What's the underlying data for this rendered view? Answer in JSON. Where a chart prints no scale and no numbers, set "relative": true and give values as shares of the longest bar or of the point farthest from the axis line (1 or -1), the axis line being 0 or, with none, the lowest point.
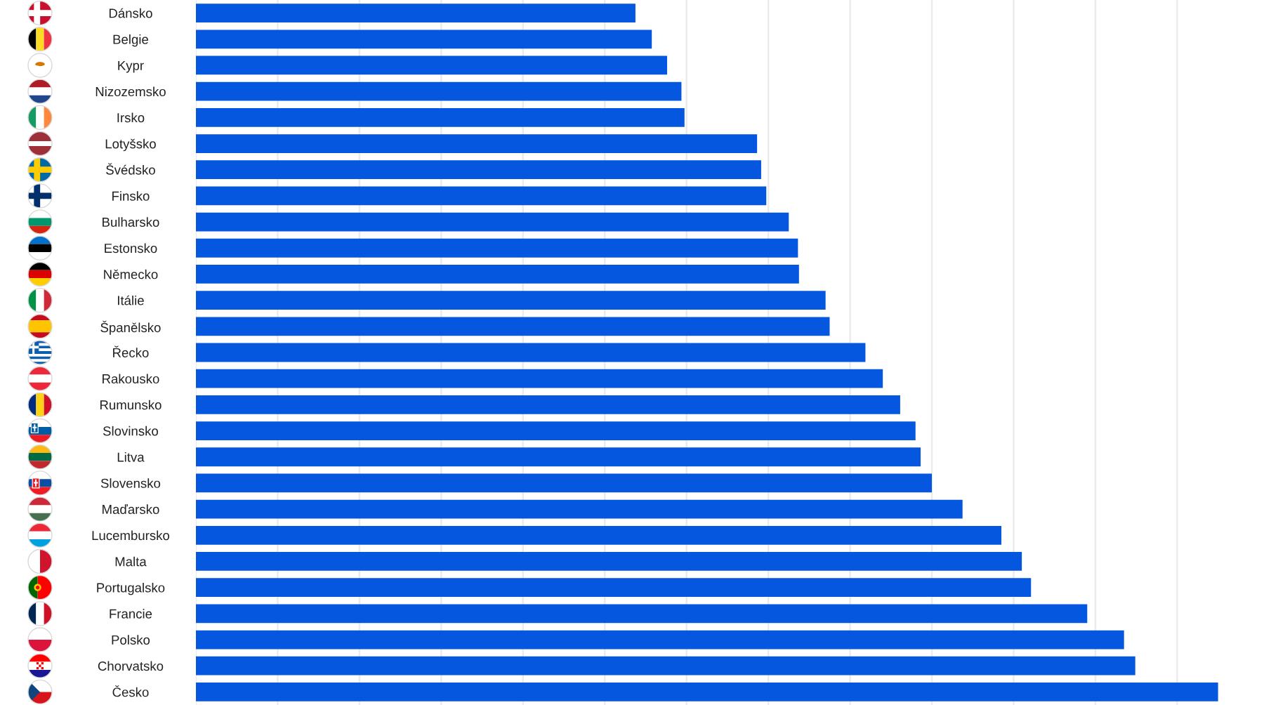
{
  "chart_data": {
    "type": "bar",
    "orientation": "horizontal",
    "relative": true,
    "grid": "x",
    "color": "#0557e0",
    "categories": [
      "Dánsko",
      "Belgie",
      "Kypr",
      "Nizozemsko",
      "Irsko",
      "Lotyšsko",
      "Švédsko",
      "Finsko",
      "Bulharsko",
      "Estonsko",
      "Německo",
      "Itálie",
      "Španělsko",
      "Řecko",
      "Rakousko",
      "Rumunsko",
      "Slovinsko",
      "Litva",
      "Slovensko",
      "Maďarsko",
      "Lucembursko",
      "Malta",
      "Portugalsko",
      "Francie",
      "Polsko",
      "Chorvatsko",
      "Česko"
    ],
    "values": [
      0.43,
      0.446,
      0.461,
      0.475,
      0.478,
      0.549,
      0.553,
      0.558,
      0.58,
      0.589,
      0.59,
      0.616,
      0.62,
      0.655,
      0.672,
      0.689,
      0.704,
      0.709,
      0.72,
      0.75,
      0.788,
      0.808,
      0.817,
      0.872,
      0.908,
      0.919,
      1
    ]
  }
}
